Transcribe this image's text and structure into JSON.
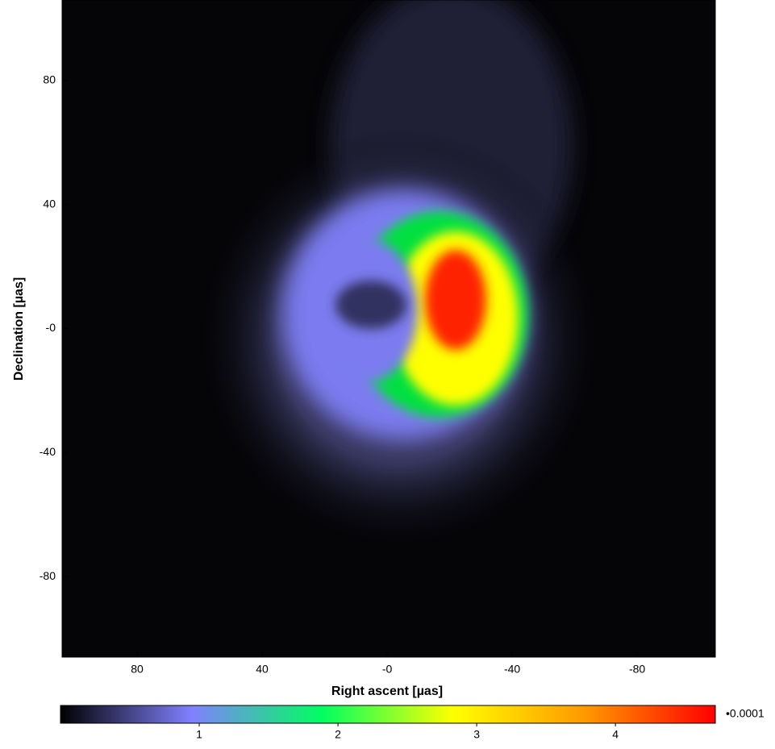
{
  "chart_data": {
    "type": "image",
    "xlabel": "Right ascent [µas]",
    "ylabel": "Declination [µas]",
    "xlim": [
      104,
      -105
    ],
    "ylim": [
      -106,
      106
    ],
    "xticks": [
      80,
      40,
      {
        "value": 0,
        "label": "-0"
      },
      -40,
      -80
    ],
    "yticks": [
      80,
      40,
      {
        "value": 0,
        "label": "-0"
      },
      -40,
      -80
    ],
    "colorbar": {
      "clim": [
        0,
        4.72
      ],
      "ticks": [
        1,
        2,
        3,
        4
      ],
      "scale_label": "•0.0001",
      "colormap": [
        "#000000",
        "#8080ff",
        "#00ff60",
        "#ffff00",
        "#ff9900",
        "#ff0000"
      ]
    }
  }
}
